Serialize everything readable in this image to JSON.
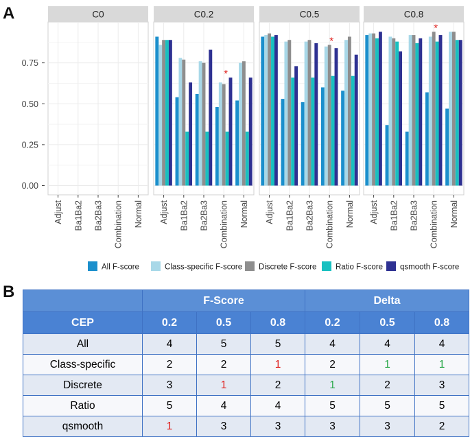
{
  "panel_labels": {
    "a": "A",
    "b": "B"
  },
  "chart_data": {
    "type": "bar",
    "facets": [
      "C0",
      "C0.2",
      "C0.5",
      "C0.8"
    ],
    "categories": [
      "Adjust",
      "Ba1Ba2",
      "Ba2Ba3",
      "Combination",
      "Normal"
    ],
    "ylim": [
      0,
      1
    ],
    "yticks": [
      "0.00",
      "0.25",
      "0.50",
      "0.75"
    ],
    "ytick_values": [
      0,
      0.25,
      0.5,
      0.75
    ],
    "grid": true,
    "legend_position": "bottom",
    "annotation_marker": "*",
    "significance": [
      {
        "facet": "C0.2",
        "category": "Combination"
      },
      {
        "facet": "C0.5",
        "category": "Combination"
      },
      {
        "facet": "C0.8",
        "category": "Combination"
      }
    ],
    "series": [
      {
        "name": "All F-score",
        "color": "#1b8fcc",
        "values": {
          "C0": [
            null,
            null,
            null,
            null,
            null
          ],
          "C0.2": [
            0.91,
            0.54,
            0.56,
            0.48,
            0.52
          ],
          "C0.5": [
            0.91,
            0.53,
            0.51,
            0.6,
            0.58
          ],
          "C0.8": [
            0.92,
            0.37,
            0.33,
            0.57,
            0.47
          ]
        }
      },
      {
        "name": "Class-specific F-score",
        "color": "#a8d8e8",
        "values": {
          "C0": [
            null,
            null,
            null,
            null,
            null
          ],
          "C0.2": [
            0.86,
            0.78,
            0.76,
            0.63,
            0.75
          ],
          "C0.5": [
            0.92,
            0.88,
            0.88,
            0.85,
            0.89
          ],
          "C0.8": [
            0.93,
            0.91,
            0.92,
            0.91,
            0.94
          ]
        }
      },
      {
        "name": "Discrete F-score",
        "color": "#8e8e8e",
        "values": {
          "C0": [
            null,
            null,
            null,
            null,
            null
          ],
          "C0.2": [
            0.89,
            0.77,
            0.75,
            0.62,
            0.76
          ],
          "C0.5": [
            0.93,
            0.89,
            0.89,
            0.86,
            0.91
          ],
          "C0.8": [
            0.93,
            0.9,
            0.92,
            0.94,
            0.94
          ]
        }
      },
      {
        "name": "Ratio F-score",
        "color": "#18c0c0",
        "values": {
          "C0": [
            null,
            null,
            null,
            null,
            null
          ],
          "C0.2": [
            0.89,
            0.33,
            0.33,
            0.33,
            0.33
          ],
          "C0.5": [
            0.91,
            0.66,
            0.66,
            0.67,
            0.67
          ],
          "C0.8": [
            0.9,
            0.88,
            0.87,
            0.88,
            0.89
          ]
        }
      },
      {
        "name": "qsmooth F-score",
        "color": "#2e3192",
        "values": {
          "C0": [
            null,
            null,
            null,
            null,
            null
          ],
          "C0.2": [
            0.89,
            0.63,
            0.83,
            0.66,
            0.66
          ],
          "C0.5": [
            0.92,
            0.73,
            0.87,
            0.84,
            0.8
          ],
          "C0.8": [
            0.94,
            0.82,
            0.9,
            0.92,
            0.89
          ]
        }
      }
    ]
  },
  "table": {
    "group_headers": [
      "",
      "F-Score",
      "Delta"
    ],
    "col_headers": [
      "CEP",
      "0.2",
      "0.5",
      "0.8",
      "0.2",
      "0.5",
      "0.8"
    ],
    "rows": [
      {
        "label": "All",
        "cells": [
          {
            "v": "4",
            "c": ""
          },
          {
            "v": "5",
            "c": ""
          },
          {
            "v": "5",
            "c": ""
          },
          {
            "v": "4",
            "c": ""
          },
          {
            "v": "4",
            "c": ""
          },
          {
            "v": "4",
            "c": ""
          }
        ]
      },
      {
        "label": "Class-specific",
        "cells": [
          {
            "v": "2",
            "c": ""
          },
          {
            "v": "2",
            "c": ""
          },
          {
            "v": "1",
            "c": "red"
          },
          {
            "v": "2",
            "c": ""
          },
          {
            "v": "1",
            "c": "green"
          },
          {
            "v": "1",
            "c": "green"
          }
        ]
      },
      {
        "label": "Discrete",
        "cells": [
          {
            "v": "3",
            "c": ""
          },
          {
            "v": "1",
            "c": "red"
          },
          {
            "v": "2",
            "c": ""
          },
          {
            "v": "1",
            "c": "green"
          },
          {
            "v": "2",
            "c": ""
          },
          {
            "v": "3",
            "c": ""
          }
        ]
      },
      {
        "label": "Ratio",
        "cells": [
          {
            "v": "5",
            "c": ""
          },
          {
            "v": "4",
            "c": ""
          },
          {
            "v": "4",
            "c": ""
          },
          {
            "v": "5",
            "c": ""
          },
          {
            "v": "5",
            "c": ""
          },
          {
            "v": "5",
            "c": ""
          }
        ]
      },
      {
        "label": "qsmooth",
        "cells": [
          {
            "v": "1",
            "c": "red"
          },
          {
            "v": "3",
            "c": ""
          },
          {
            "v": "3",
            "c": ""
          },
          {
            "v": "3",
            "c": ""
          },
          {
            "v": "3",
            "c": ""
          },
          {
            "v": "2",
            "c": ""
          }
        ]
      }
    ]
  }
}
